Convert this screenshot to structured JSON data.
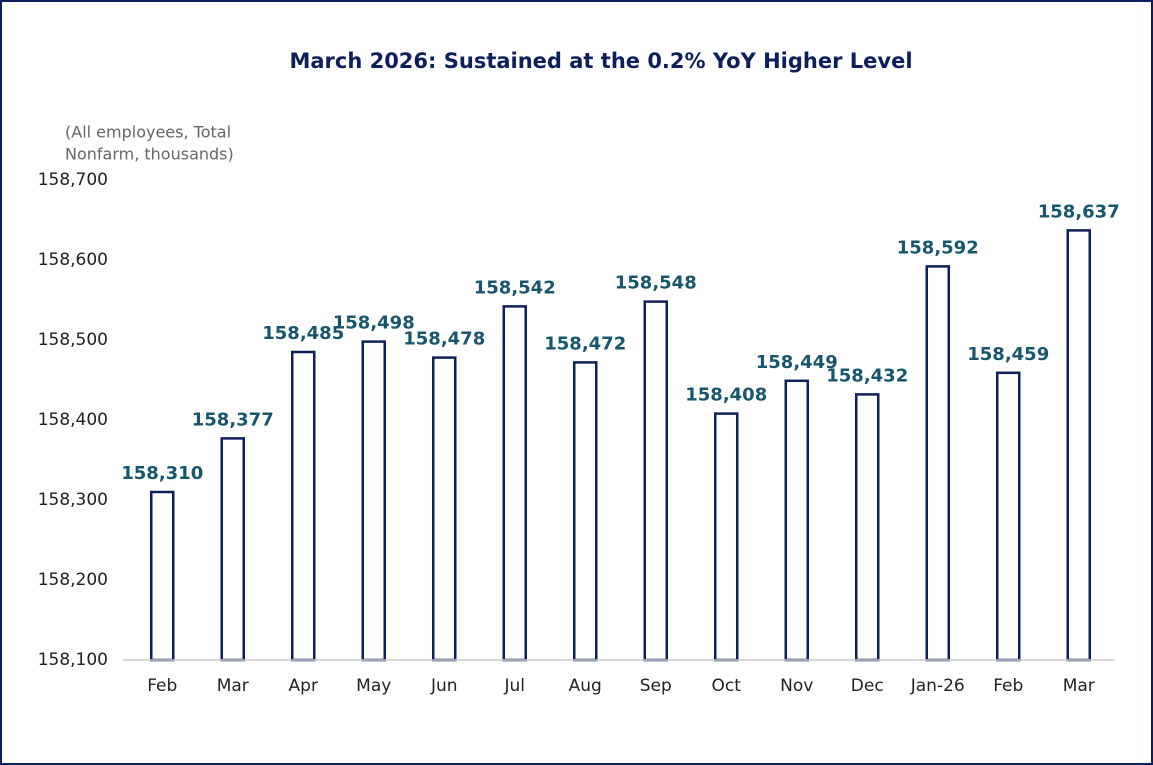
{
  "chart_data": {
    "type": "bar",
    "title": "March 2026: Sustained at the 0.2% YoY Higher Level",
    "y_label": [
      "(All employees, Total",
      "Nonfarm, thousands)"
    ],
    "categories": [
      "Feb",
      "Mar",
      "Apr",
      "May",
      "Jun",
      "Jul",
      "Aug",
      "Sep",
      "Oct",
      "Nov",
      "Dec",
      "Jan-26",
      "Feb",
      "Mar"
    ],
    "values": [
      158310,
      158377,
      158485,
      158498,
      158478,
      158542,
      158472,
      158548,
      158408,
      158449,
      158432,
      158592,
      158459,
      158637
    ],
    "value_labels": [
      "158,310",
      "158,377",
      "158,485",
      "158,498",
      "158,478",
      "158,542",
      "158,472",
      "158,548",
      "158,408",
      "158,449",
      "158,432",
      "158,592",
      "158,459",
      "158,637"
    ],
    "color": "#0d1f5c",
    "ylim": [
      158100,
      158700
    ],
    "yticks": [
      {
        "value": 158100,
        "label": "158,100"
      },
      {
        "value": 158200,
        "label": "158,200"
      },
      {
        "value": 158300,
        "label": "158,300"
      },
      {
        "value": 158400,
        "label": "158,400"
      },
      {
        "value": 158500,
        "label": "158,500"
      },
      {
        "value": 158600,
        "label": "158,600"
      },
      {
        "value": 158700,
        "label": "158,700"
      }
    ],
    "grid": false
  }
}
